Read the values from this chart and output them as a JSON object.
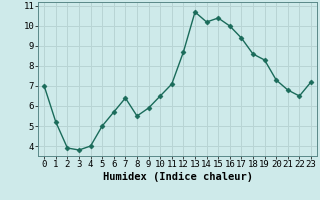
{
  "x": [
    0,
    1,
    2,
    3,
    4,
    5,
    6,
    7,
    8,
    9,
    10,
    11,
    12,
    13,
    14,
    15,
    16,
    17,
    18,
    19,
    20,
    21,
    22,
    23
  ],
  "y": [
    7.0,
    5.2,
    3.9,
    3.8,
    4.0,
    5.0,
    5.7,
    6.4,
    5.5,
    5.9,
    6.5,
    7.1,
    8.7,
    10.7,
    10.2,
    10.4,
    10.0,
    9.4,
    8.6,
    8.3,
    7.3,
    6.8,
    6.5,
    7.2
  ],
  "line_color": "#1a6b5a",
  "marker": "D",
  "marker_size": 2.5,
  "xlabel": "Humidex (Indice chaleur)",
  "xlim": [
    -0.5,
    23.5
  ],
  "ylim": [
    3.5,
    11.2
  ],
  "yticks": [
    4,
    5,
    6,
    7,
    8,
    9,
    10,
    11
  ],
  "xticks": [
    0,
    1,
    2,
    3,
    4,
    5,
    6,
    7,
    8,
    9,
    10,
    11,
    12,
    13,
    14,
    15,
    16,
    17,
    18,
    19,
    20,
    21,
    22,
    23
  ],
  "bg_color": "#ceeaea",
  "grid_color": "#b8d4d4",
  "tick_font_size": 6.5,
  "xlabel_font_size": 7.5,
  "linewidth": 1.0
}
